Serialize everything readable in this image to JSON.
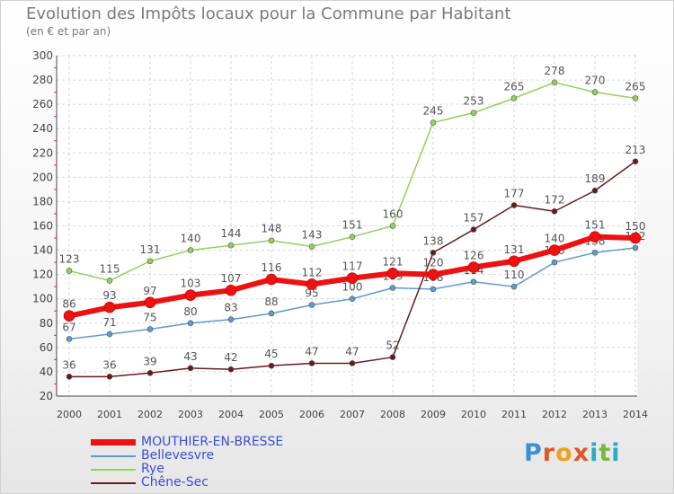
{
  "title": "Evolution des Impôts locaux pour la Commune par Habitant",
  "subtitle": "(en € et par an)",
  "logo_text": "Proxiti",
  "chart_data": {
    "type": "line",
    "x": [
      "2000",
      "2001",
      "2002",
      "2003",
      "2004",
      "2005",
      "2006",
      "2007",
      "2008",
      "2009",
      "2010",
      "2011",
      "2012",
      "2013",
      "2014"
    ],
    "ylim": [
      20,
      300
    ],
    "yticks": [
      20,
      40,
      60,
      80,
      100,
      120,
      140,
      160,
      180,
      200,
      220,
      240,
      260,
      280,
      300
    ],
    "grid": true,
    "legend_position": "bottom-left",
    "series": [
      {
        "name": "MOUTHIER-EN-BRESSE",
        "color": "#ee1111",
        "values": [
          86,
          93,
          97,
          103,
          107,
          116,
          112,
          117,
          121,
          120,
          126,
          131,
          140,
          151,
          150
        ]
      },
      {
        "name": "Bellevesvre",
        "color": "#5d9bd1",
        "values": [
          67,
          71,
          75,
          80,
          83,
          88,
          95,
          100,
          109,
          108,
          114,
          110,
          130,
          138,
          142
        ]
      },
      {
        "name": "Rye",
        "color": "#8fd35a",
        "values": [
          123,
          115,
          131,
          140,
          144,
          148,
          143,
          151,
          160,
          245,
          253,
          265,
          278,
          270,
          265
        ]
      },
      {
        "name": "Chêne-Sec",
        "color": "#6b1a1a",
        "values": [
          36,
          36,
          39,
          43,
          42,
          45,
          47,
          47,
          52,
          138,
          157,
          177,
          172,
          189,
          213
        ]
      }
    ]
  }
}
